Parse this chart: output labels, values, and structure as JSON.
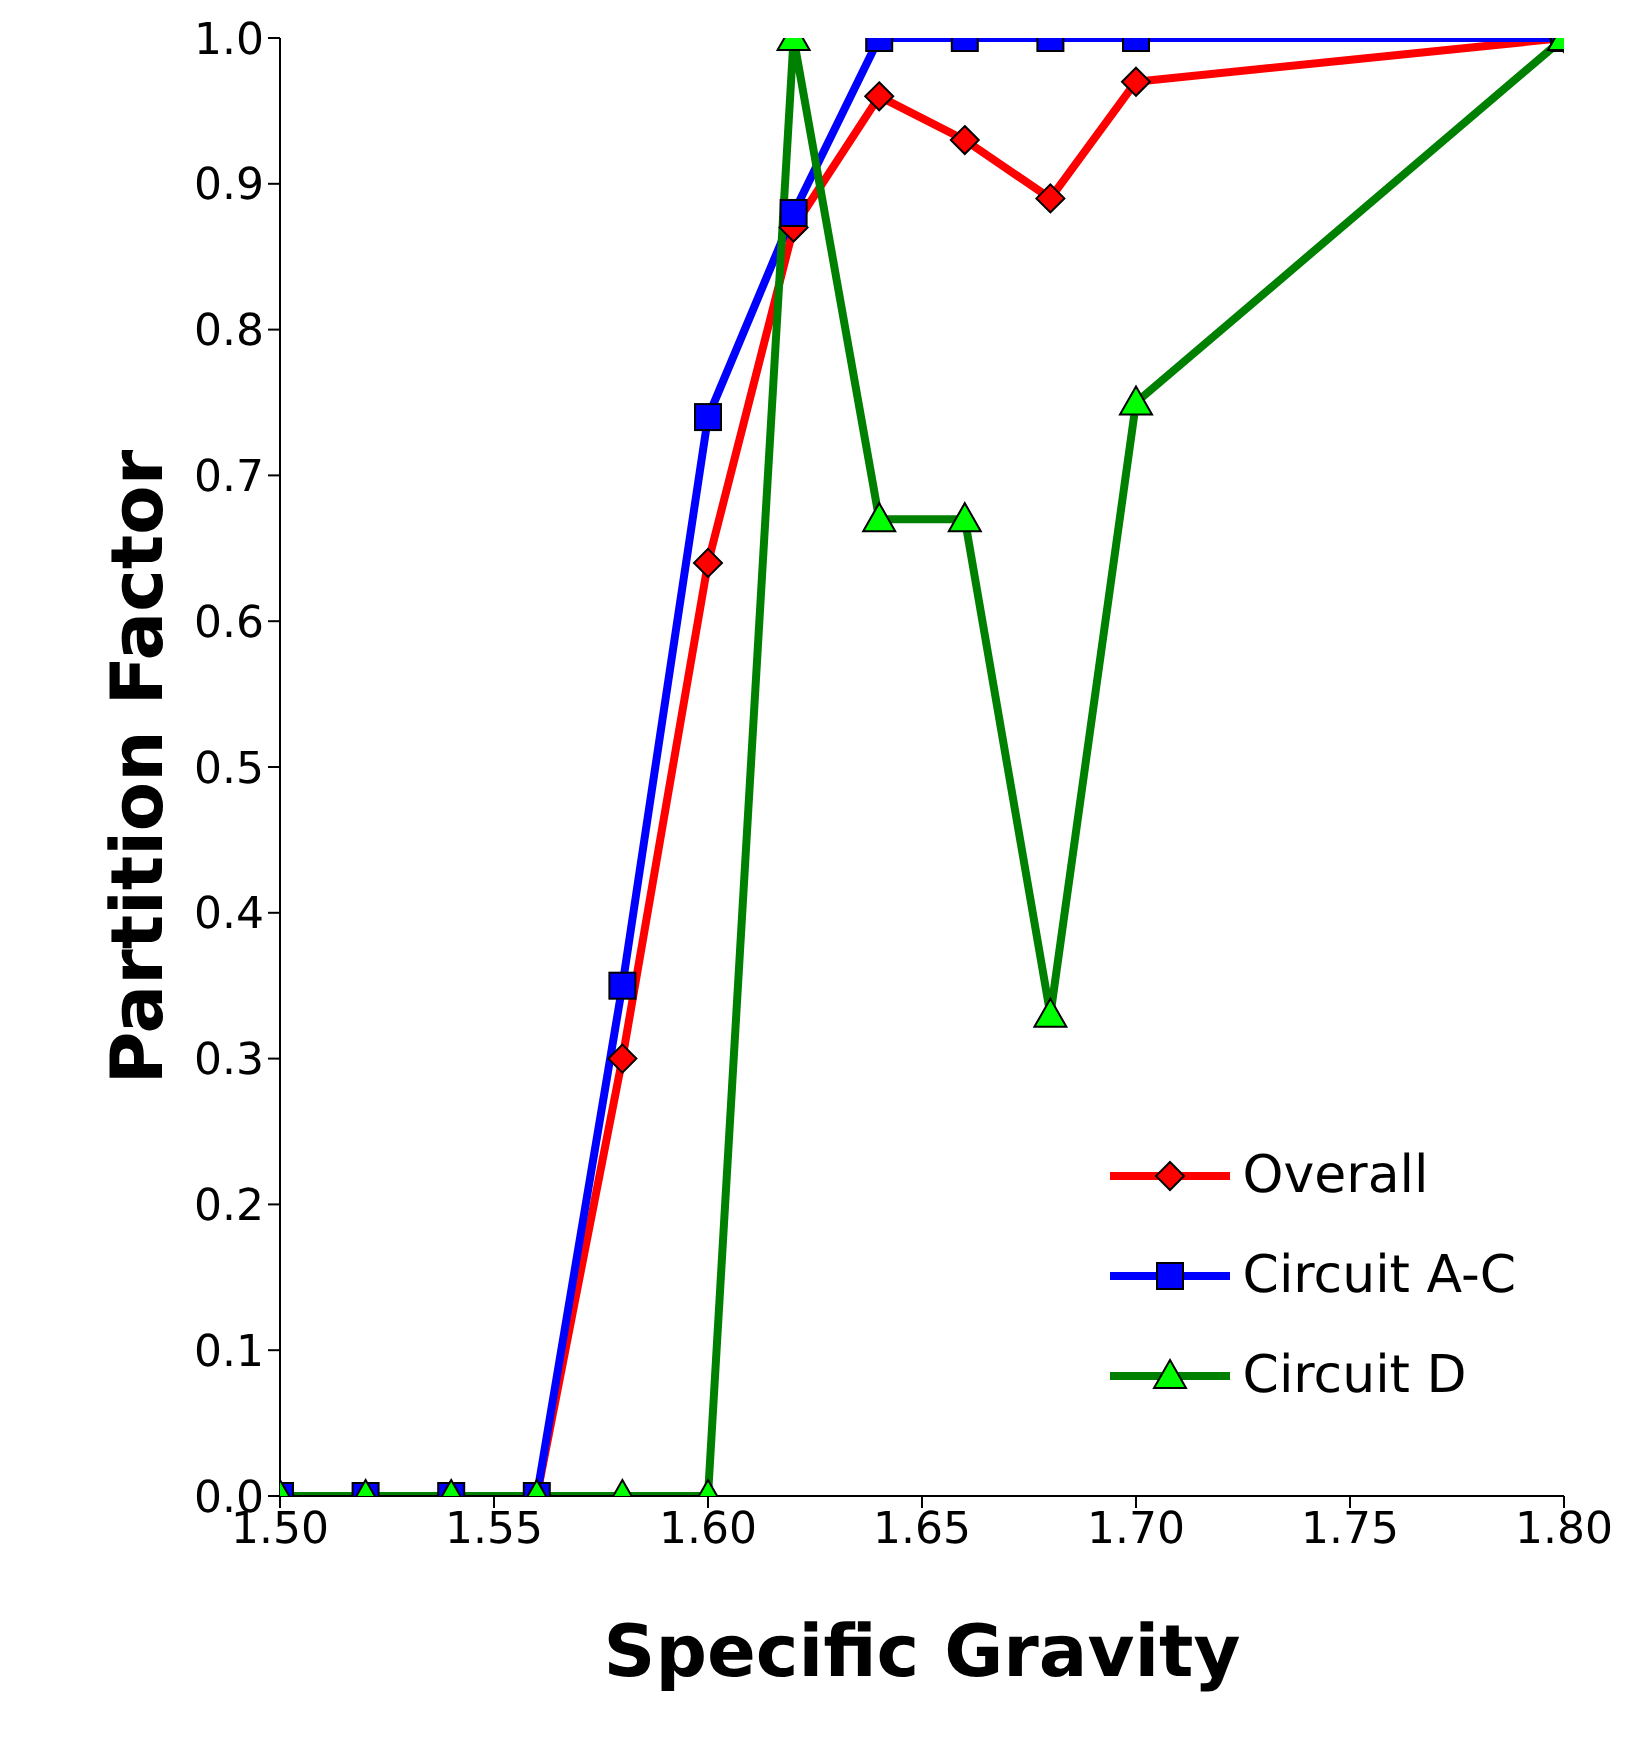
{
  "chart_data": {
    "type": "line",
    "xlabel": "Specific Gravity",
    "ylabel": "Partition Factor",
    "x": [
      1.5,
      1.52,
      1.54,
      1.56,
      1.58,
      1.6,
      1.62,
      1.64,
      1.66,
      1.68,
      1.7,
      1.8
    ],
    "series": [
      {
        "name": "Overall",
        "color": "#ff0000",
        "marker": "diamond",
        "values": [
          null,
          null,
          0,
          0,
          0.3,
          0.64,
          0.87,
          0.96,
          0.93,
          0.89,
          0.97,
          1.0
        ]
      },
      {
        "name": "Circuit A-C",
        "color": "#0000ff",
        "marker": "square",
        "values": [
          0,
          0,
          0,
          0,
          0.35,
          0.74,
          0.88,
          1.0,
          1.0,
          1.0,
          1.0,
          1.0
        ]
      },
      {
        "name": "Circuit D",
        "color": "#008000",
        "marker": "triangle",
        "values": [
          0,
          0,
          0,
          0,
          0,
          0,
          1.0,
          0.67,
          0.67,
          0.33,
          0.75,
          1.0
        ]
      }
    ],
    "xlim": [
      1.5,
      1.8
    ],
    "ylim": [
      0,
      1
    ],
    "xticks": [
      {
        "value": 1.5,
        "label": "1.50"
      },
      {
        "value": 1.55,
        "label": "1.55"
      },
      {
        "value": 1.6,
        "label": "1.60"
      },
      {
        "value": 1.65,
        "label": "1.65"
      },
      {
        "value": 1.7,
        "label": "1.70"
      },
      {
        "value": 1.75,
        "label": "1.75"
      },
      {
        "value": 1.8,
        "label": "1.80"
      }
    ],
    "yticks": [
      {
        "value": 0,
        "label": "0.0"
      },
      {
        "value": 0.1,
        "label": "0.1"
      },
      {
        "value": 0.2,
        "label": "0.2"
      },
      {
        "value": 0.3,
        "label": "0.3"
      },
      {
        "value": 0.4,
        "label": "0.4"
      },
      {
        "value": 0.5,
        "label": "0.5"
      },
      {
        "value": 0.6,
        "label": "0.6"
      },
      {
        "value": 0.7,
        "label": "0.7"
      },
      {
        "value": 0.8,
        "label": "0.8"
      },
      {
        "value": 0.9,
        "label": "0.9"
      },
      {
        "value": 1,
        "label": "1.0"
      }
    ],
    "legend": "bottom right",
    "grid": false,
    "line_style": "solid"
  }
}
